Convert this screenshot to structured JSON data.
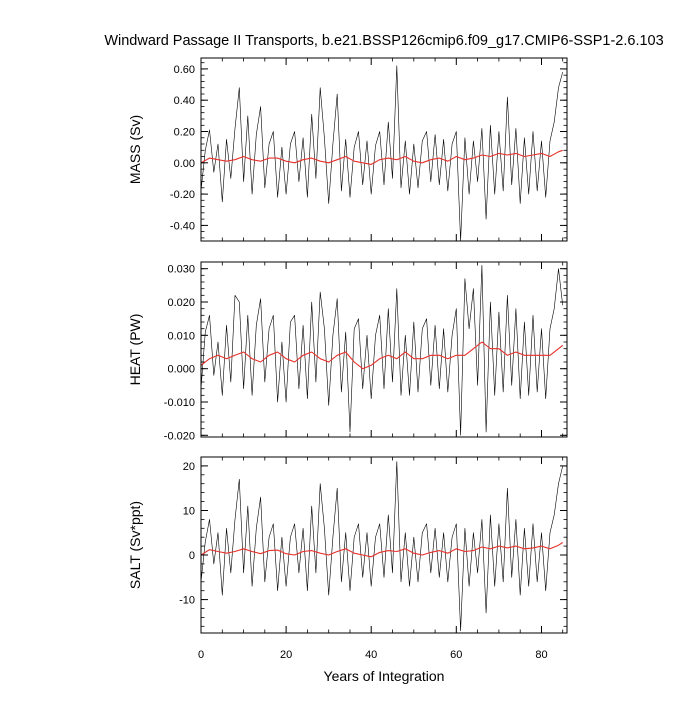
{
  "chart_data": {
    "type": "line",
    "title": "Windward Passage II Transports, b.e21.BSSP126cmip6.f09_g17.CMIP6-SSP1-2.6.103",
    "xlabel": "Years of Integration",
    "xlim": [
      0,
      86
    ],
    "xticks": [
      0,
      20,
      40,
      60,
      80
    ],
    "xtick_labels": [
      "0",
      "20",
      "40",
      "60",
      "80"
    ],
    "colors": {
      "monthly": "#000000",
      "smoothed": "#e8302a"
    },
    "panels": [
      {
        "ylabel": "MASS (Sv)",
        "ylim": [
          -0.5,
          0.67
        ],
        "yticks": [
          -0.4,
          -0.2,
          0.0,
          0.2,
          0.4,
          0.6
        ],
        "ytick_labels": [
          "-0.40",
          "-0.20",
          "0.00",
          "0.20",
          "0.40",
          "0.60"
        ],
        "series": [
          {
            "style": "monthly",
            "x": [
              0,
              1,
              2,
              3,
              4,
              5,
              6,
              7,
              8,
              9,
              10,
              11,
              12,
              13,
              14,
              15,
              16,
              17,
              18,
              19,
              20,
              21,
              22,
              23,
              24,
              25,
              26,
              27,
              28,
              29,
              30,
              31,
              32,
              33,
              34,
              35,
              36,
              37,
              38,
              39,
              40,
              41,
              42,
              43,
              44,
              45,
              46,
              47,
              48,
              49,
              50,
              51,
              52,
              53,
              54,
              55,
              56,
              57,
              58,
              59,
              60,
              61,
              62,
              63,
              64,
              65,
              66,
              67,
              68,
              69,
              70,
              71,
              72,
              73,
              74,
              75,
              76,
              77,
              78,
              79,
              80,
              81,
              82,
              83,
              84,
              85
            ],
            "y": [
              -0.18,
              0.08,
              0.21,
              -0.06,
              0.12,
              -0.25,
              0.15,
              -0.1,
              0.22,
              0.48,
              -0.12,
              0.3,
              -0.2,
              0.18,
              0.36,
              -0.16,
              0.12,
              0.2,
              -0.22,
              0.1,
              -0.2,
              0.12,
              0.2,
              -0.12,
              0.16,
              -0.22,
              0.31,
              -0.1,
              0.48,
              0.16,
              -0.26,
              0.12,
              0.44,
              -0.18,
              0.15,
              -0.22,
              0.1,
              0.2,
              -0.14,
              0.14,
              -0.2,
              0.11,
              0.2,
              -0.14,
              0.26,
              -0.1,
              0.62,
              -0.16,
              0.14,
              -0.2,
              0.12,
              -0.16,
              0.14,
              0.2,
              -0.12,
              0.18,
              -0.14,
              0.15,
              -0.18,
              0.12,
              0.2,
              -0.5,
              0.16,
              -0.2,
              0.14,
              -0.12,
              0.22,
              -0.36,
              0.24,
              -0.2,
              0.2,
              -0.18,
              0.42,
              -0.14,
              0.22,
              -0.26,
              0.16,
              -0.2,
              0.2,
              -0.18,
              0.14,
              -0.22,
              0.14,
              0.26,
              0.48,
              0.58
            ]
          },
          {
            "style": "smoothed",
            "x": [
              0,
              2,
              4,
              6,
              8,
              10,
              12,
              14,
              16,
              18,
              20,
              22,
              24,
              26,
              28,
              30,
              32,
              34,
              36,
              38,
              40,
              42,
              44,
              46,
              48,
              50,
              52,
              54,
              56,
              58,
              60,
              62,
              64,
              66,
              68,
              70,
              72,
              74,
              76,
              78,
              80,
              82,
              84,
              85
            ],
            "y": [
              0.0,
              0.03,
              0.02,
              0.01,
              0.02,
              0.04,
              0.02,
              0.01,
              0.03,
              0.03,
              0.01,
              0.0,
              0.02,
              0.03,
              0.01,
              0.0,
              0.02,
              0.04,
              0.01,
              0.0,
              -0.01,
              0.02,
              0.03,
              0.02,
              0.04,
              0.01,
              0.0,
              0.02,
              0.03,
              0.01,
              0.04,
              0.02,
              0.03,
              0.05,
              0.04,
              0.06,
              0.05,
              0.06,
              0.04,
              0.05,
              0.06,
              0.04,
              0.07,
              0.08
            ]
          }
        ]
      },
      {
        "ylabel": "HEAT (PW)",
        "ylim": [
          -0.0205,
          0.032
        ],
        "yticks": [
          -0.02,
          -0.01,
          0.0,
          0.01,
          0.02,
          0.03
        ],
        "ytick_labels": [
          "-0.020",
          "-0.010",
          "0.000",
          "0.010",
          "0.020",
          "0.030"
        ],
        "series": [
          {
            "style": "monthly",
            "x": [
              0,
              1,
              2,
              3,
              4,
              5,
              6,
              7,
              8,
              9,
              10,
              11,
              12,
              13,
              14,
              15,
              16,
              17,
              18,
              19,
              20,
              21,
              22,
              23,
              24,
              25,
              26,
              27,
              28,
              29,
              30,
              31,
              32,
              33,
              34,
              35,
              36,
              37,
              38,
              39,
              40,
              41,
              42,
              43,
              44,
              45,
              46,
              47,
              48,
              49,
              50,
              51,
              52,
              53,
              54,
              55,
              56,
              57,
              58,
              59,
              60,
              61,
              62,
              63,
              64,
              65,
              66,
              67,
              68,
              69,
              70,
              71,
              72,
              73,
              74,
              75,
              76,
              77,
              78,
              79,
              80,
              81,
              82,
              83,
              84,
              85
            ],
            "y": [
              -0.006,
              0.011,
              0.016,
              -0.002,
              0.008,
              -0.008,
              0.013,
              -0.004,
              0.022,
              0.02,
              -0.006,
              0.016,
              -0.008,
              0.013,
              0.021,
              -0.004,
              0.012,
              0.016,
              -0.01,
              0.008,
              -0.01,
              0.014,
              0.016,
              -0.006,
              0.013,
              -0.009,
              0.02,
              -0.004,
              0.023,
              0.012,
              -0.011,
              0.01,
              0.021,
              -0.007,
              0.011,
              -0.019,
              0.012,
              0.015,
              -0.006,
              0.01,
              -0.009,
              0.01,
              0.016,
              -0.006,
              0.018,
              -0.004,
              0.024,
              -0.008,
              0.01,
              -0.008,
              0.014,
              -0.007,
              0.012,
              0.015,
              -0.005,
              0.013,
              -0.006,
              0.012,
              -0.007,
              0.01,
              0.018,
              -0.02,
              0.027,
              0.012,
              0.024,
              -0.005,
              0.031,
              -0.019,
              0.02,
              -0.008,
              0.017,
              -0.007,
              0.022,
              -0.005,
              0.018,
              -0.009,
              0.014,
              -0.008,
              0.016,
              -0.007,
              0.012,
              -0.009,
              0.012,
              0.018,
              0.03,
              0.019
            ]
          },
          {
            "style": "smoothed",
            "x": [
              0,
              2,
              4,
              6,
              8,
              10,
              12,
              14,
              16,
              18,
              20,
              22,
              24,
              26,
              28,
              30,
              32,
              34,
              36,
              38,
              40,
              42,
              44,
              46,
              48,
              50,
              52,
              54,
              56,
              58,
              60,
              62,
              64,
              66,
              68,
              70,
              72,
              74,
              76,
              78,
              80,
              82,
              84,
              85
            ],
            "y": [
              0.001,
              0.003,
              0.004,
              0.003,
              0.004,
              0.005,
              0.003,
              0.002,
              0.004,
              0.005,
              0.003,
              0.002,
              0.004,
              0.005,
              0.003,
              0.002,
              0.004,
              0.005,
              0.002,
              0.0,
              0.001,
              0.003,
              0.004,
              0.003,
              0.005,
              0.003,
              0.003,
              0.004,
              0.004,
              0.003,
              0.004,
              0.004,
              0.006,
              0.008,
              0.006,
              0.006,
              0.004,
              0.005,
              0.004,
              0.004,
              0.004,
              0.004,
              0.006,
              0.007
            ]
          }
        ]
      },
      {
        "ylabel": "SALT (Sv*ppt)",
        "ylim": [
          -17.5,
          22
        ],
        "yticks": [
          -10,
          0,
          10,
          20
        ],
        "ytick_labels": [
          "-10",
          "0",
          "10",
          "20"
        ],
        "series": [
          {
            "style": "monthly",
            "x": [
              0,
              1,
              2,
              3,
              4,
              5,
              6,
              7,
              8,
              9,
              10,
              11,
              12,
              13,
              14,
              15,
              16,
              17,
              18,
              19,
              20,
              21,
              22,
              23,
              24,
              25,
              26,
              27,
              28,
              29,
              30,
              31,
              32,
              33,
              34,
              35,
              36,
              37,
              38,
              39,
              40,
              41,
              42,
              43,
              44,
              45,
              46,
              47,
              48,
              49,
              50,
              51,
              52,
              53,
              54,
              55,
              56,
              57,
              58,
              59,
              60,
              61,
              62,
              63,
              64,
              65,
              66,
              67,
              68,
              69,
              70,
              71,
              72,
              73,
              74,
              75,
              76,
              77,
              78,
              79,
              80,
              81,
              82,
              83,
              84,
              85
            ],
            "y": [
              -6,
              3,
              8,
              -2,
              5,
              -9,
              6,
              -4,
              8,
              17,
              -4,
              11,
              -7,
              6,
              13,
              -6,
              4,
              7,
              -8,
              4,
              -7,
              4,
              7,
              -4,
              6,
              -8,
              11,
              -4,
              16,
              6,
              -9,
              4,
              15,
              -6,
              5,
              -8,
              4,
              7,
              -5,
              5,
              -7,
              4,
              7,
              -5,
              9,
              -4,
              21,
              -6,
              5,
              -7,
              4,
              -6,
              5,
              7,
              -4,
              6,
              -5,
              5,
              -6,
              4,
              7,
              -17,
              6,
              -7,
              5,
              -4,
              8,
              -13,
              9,
              -7,
              7,
              -6,
              15,
              -5,
              8,
              -9,
              6,
              -7,
              7,
              -6,
              5,
              -8,
              5,
              9,
              16,
              20
            ]
          },
          {
            "style": "smoothed",
            "x": [
              0,
              2,
              4,
              6,
              8,
              10,
              12,
              14,
              16,
              18,
              20,
              22,
              24,
              26,
              28,
              30,
              32,
              34,
              36,
              38,
              40,
              42,
              44,
              46,
              48,
              50,
              52,
              54,
              56,
              58,
              60,
              62,
              64,
              66,
              68,
              70,
              72,
              74,
              76,
              78,
              80,
              82,
              84,
              85
            ],
            "y": [
              0.0,
              1.2,
              0.8,
              0.4,
              0.8,
              1.4,
              0.8,
              0.3,
              1.0,
              1.1,
              0.3,
              0.0,
              0.8,
              1.0,
              0.4,
              0.0,
              0.8,
              1.4,
              0.4,
              0.0,
              -0.4,
              0.6,
              1.0,
              0.8,
              1.4,
              0.4,
              0.0,
              0.6,
              1.0,
              0.4,
              1.4,
              0.8,
              1.0,
              1.8,
              1.4,
              2.0,
              1.6,
              2.0,
              1.4,
              1.6,
              2.0,
              1.4,
              2.2,
              2.8
            ]
          }
        ]
      }
    ]
  }
}
